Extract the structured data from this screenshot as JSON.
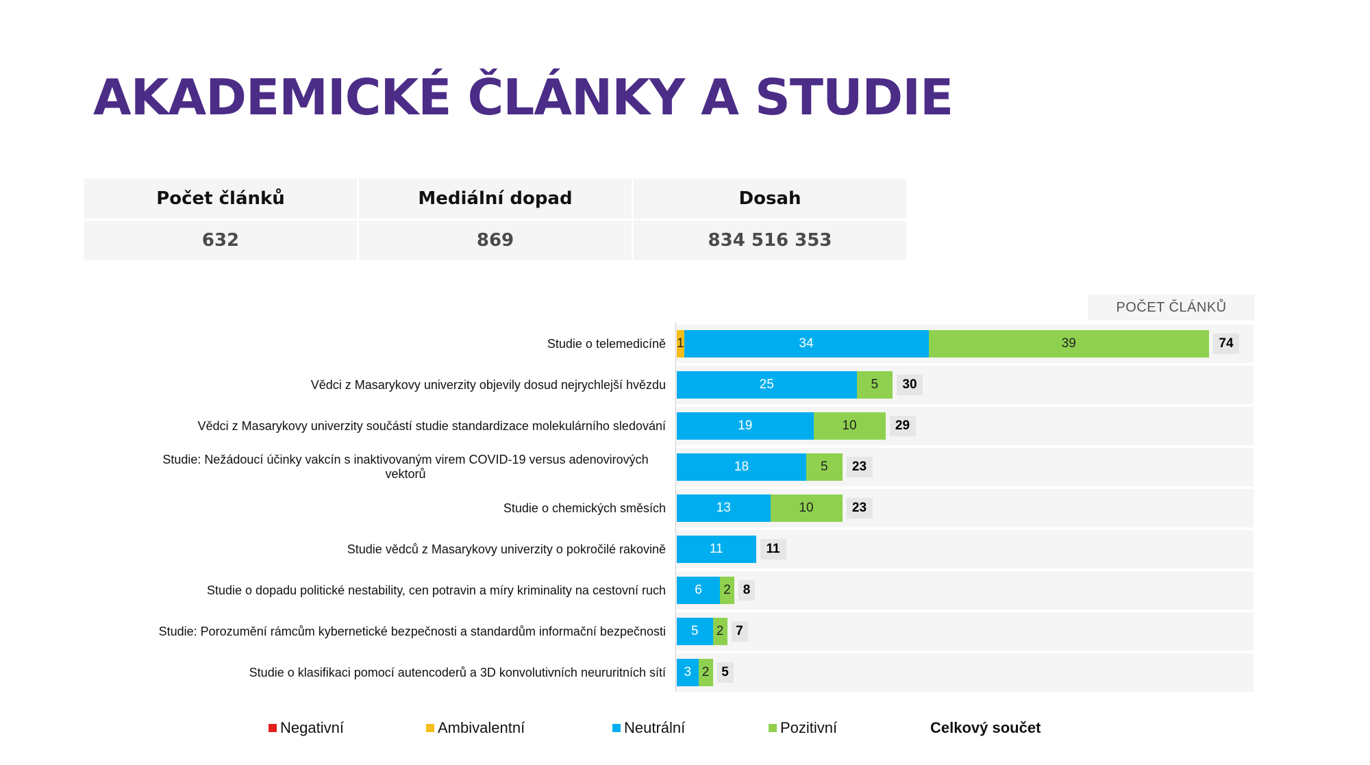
{
  "title": "AKADEMICKÉ ČLÁNKY A STUDIE",
  "stats": {
    "headers": [
      "Počet článků",
      "Mediální dopad",
      "Dosah"
    ],
    "values": [
      "632",
      "869",
      "834 516 353"
    ]
  },
  "colors": {
    "negative": "#e3201c",
    "ambivalent": "#f5bd19",
    "neutral": "#00aeef",
    "positive": "#8fd14f",
    "title": "#4b2c86"
  },
  "chart_data": {
    "type": "bar",
    "orientation": "horizontal",
    "stacked": true,
    "column_header": "POČET ČLÁNKŮ",
    "categories": [
      "Studie o telemedicíně",
      "Vědci z Masarykovy univerzity objevily dosud nejrychlejší hvězdu",
      "Vědci z Masarykovy univerzity součástí studie standardizace molekulárního sledování",
      "Studie: Nežádoucí účinky vakcín s inaktivovaným virem COVID-19 versus adenovirových vektorů",
      "Studie o chemických směsích",
      "Studie vědců z Masarykovy univerzity o pokročilé rakovině",
      "Studie o dopadu politické nestability, cen potravin a míry kriminality na cestovní ruch",
      "Studie: Porozumění rámcům kybernetické bezpečnosti a standardům informační bezpečnosti",
      "Studie o klasifikaci pomocí autencoderů a 3D konvolutivních neururitních sítí"
    ],
    "series": [
      {
        "name": "Negativní",
        "values": [
          0,
          0,
          0,
          0,
          0,
          0,
          0,
          0,
          0
        ]
      },
      {
        "name": "Ambivalentní",
        "values": [
          1,
          0,
          0,
          0,
          0,
          0,
          0,
          0,
          0
        ]
      },
      {
        "name": "Neutrální",
        "values": [
          34,
          25,
          19,
          18,
          13,
          11,
          6,
          5,
          3
        ]
      },
      {
        "name": "Pozitivní",
        "values": [
          39,
          5,
          10,
          5,
          10,
          0,
          2,
          2,
          2
        ]
      }
    ],
    "totals": [
      74,
      30,
      29,
      23,
      23,
      11,
      8,
      7,
      5
    ],
    "total_label": "Celkový součet",
    "xlim": [
      0,
      80
    ],
    "legend_position": "bottom"
  }
}
